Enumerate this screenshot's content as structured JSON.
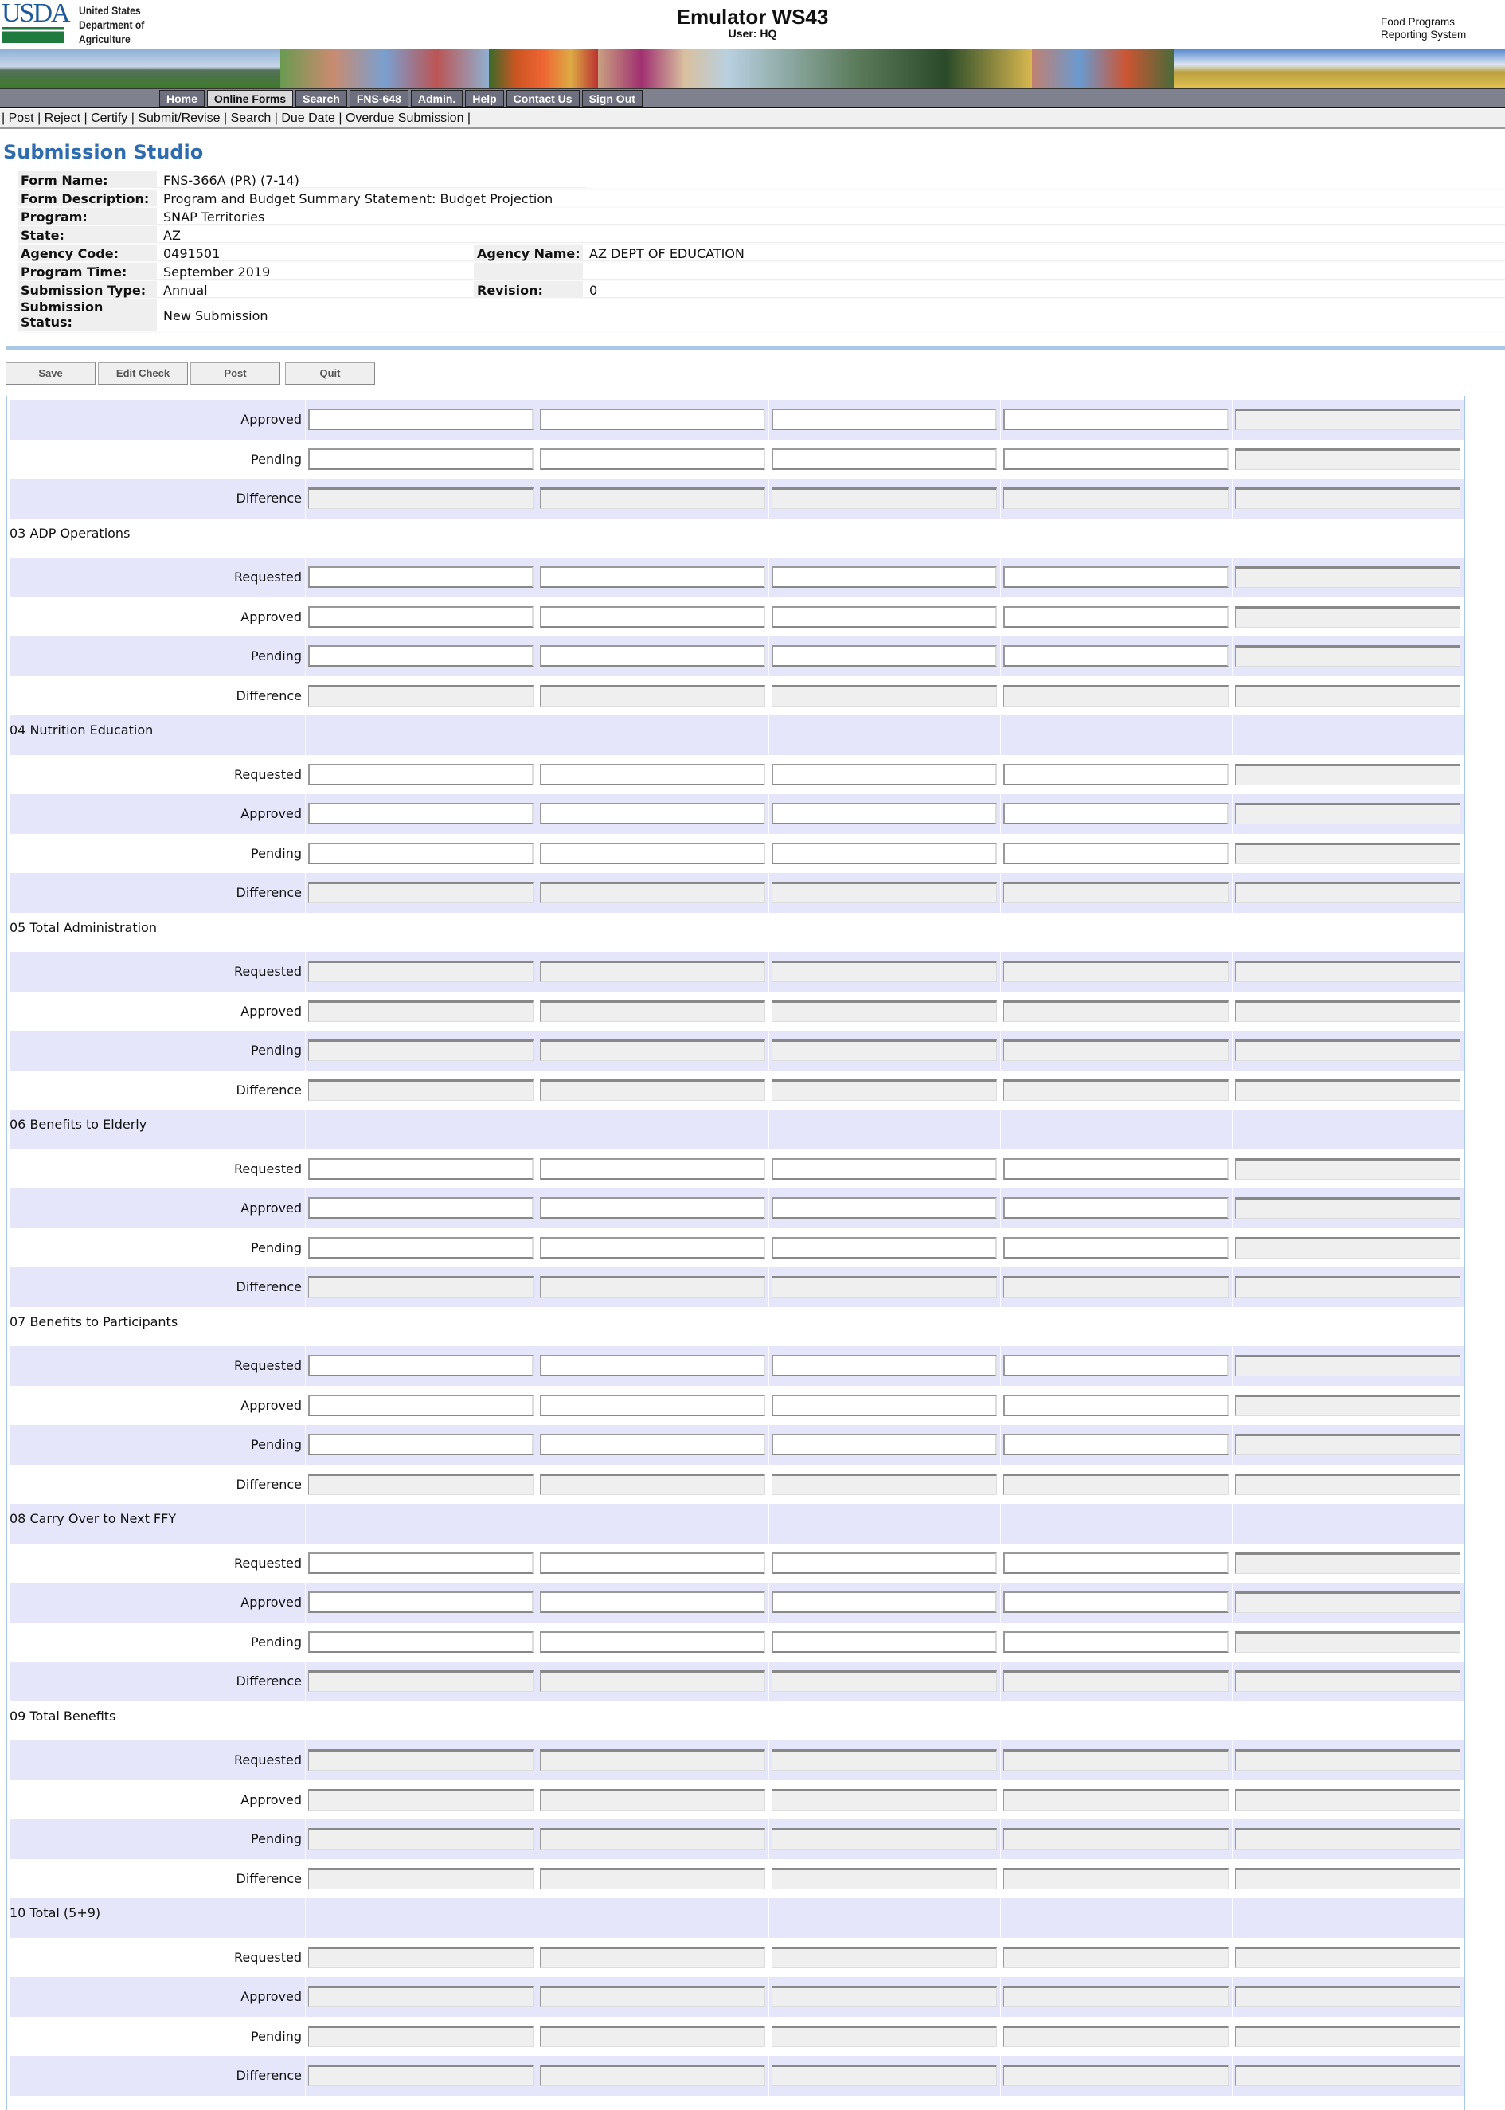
{
  "header": {
    "logo_text": "USDA",
    "agency_lines": [
      "United States",
      "Department of",
      "Agriculture"
    ],
    "title": "Emulator WS43",
    "user": "User: HQ",
    "system_lines": [
      "Food Programs",
      "Reporting System"
    ]
  },
  "nav": {
    "items": [
      {
        "label": "Home",
        "selected": false
      },
      {
        "label": "Online Forms",
        "selected": true
      },
      {
        "label": "Search",
        "selected": false
      },
      {
        "label": "FNS-648",
        "selected": false
      },
      {
        "label": "Admin.",
        "selected": false
      },
      {
        "label": "Help",
        "selected": false
      },
      {
        "label": "Contact Us",
        "selected": false
      },
      {
        "label": "Sign Out",
        "selected": false
      }
    ]
  },
  "subnav": {
    "items": [
      "Post",
      "Reject",
      "Certify",
      "Submit/Revise",
      "Search",
      "Due Date",
      "Overdue Submission"
    ]
  },
  "page_title": "Submission Studio",
  "info": {
    "form_name_label": "Form Name:",
    "form_name": "FNS-366A (PR) (7-14)",
    "form_desc_label": "Form Description:",
    "form_desc": "Program and Budget Summary Statement: Budget Projection",
    "program_label": "Program:",
    "program": "SNAP Territories",
    "state_label": "State:",
    "state": "AZ",
    "agency_code_label": "Agency Code:",
    "agency_code": "0491501",
    "agency_name_label": "Agency Name:",
    "agency_name": "AZ DEPT OF EDUCATION",
    "program_time_label": "Program Time:",
    "program_time": "September 2019",
    "submission_type_label": "Submission Type:",
    "submission_type": "Annual",
    "revision_label": "Revision:",
    "revision": "0",
    "status_label_1": "Submission",
    "status_label_2": "Status:",
    "status": "New Submission"
  },
  "actions": {
    "save": "Save",
    "edit_check": "Edit Check",
    "post": "Post",
    "quit": "Quit"
  },
  "colors": {
    "stripe": "#e6e6fa",
    "title": "#2f6cae",
    "rule": "#a7c9e6",
    "nav": "#80818f"
  },
  "grid": {
    "sections": [
      {
        "title": "",
        "editable": true,
        "rows": [
          "Approved",
          "Pending",
          "Difference"
        ]
      },
      {
        "title": "03 ADP Operations",
        "editable": true,
        "rows": [
          "Requested",
          "Approved",
          "Pending",
          "Difference"
        ]
      },
      {
        "title": "04 Nutrition Education",
        "editable": true,
        "rows": [
          "Requested",
          "Approved",
          "Pending",
          "Difference"
        ]
      },
      {
        "title": "05 Total Administration",
        "editable": false,
        "rows": [
          "Requested",
          "Approved",
          "Pending",
          "Difference"
        ]
      },
      {
        "title": "06 Benefits to Elderly",
        "editable": true,
        "rows": [
          "Requested",
          "Approved",
          "Pending",
          "Difference"
        ]
      },
      {
        "title": "07 Benefits to Participants",
        "editable": true,
        "rows": [
          "Requested",
          "Approved",
          "Pending",
          "Difference"
        ]
      },
      {
        "title": "08 Carry Over to Next FFY",
        "editable": true,
        "rows": [
          "Requested",
          "Approved",
          "Pending",
          "Difference"
        ]
      },
      {
        "title": "09 Total Benefits",
        "editable": false,
        "rows": [
          "Requested",
          "Approved",
          "Pending",
          "Difference"
        ]
      },
      {
        "title": "10 Total (5+9)",
        "editable": false,
        "rows": [
          "Requested",
          "Approved",
          "Pending",
          "Difference"
        ]
      }
    ]
  }
}
